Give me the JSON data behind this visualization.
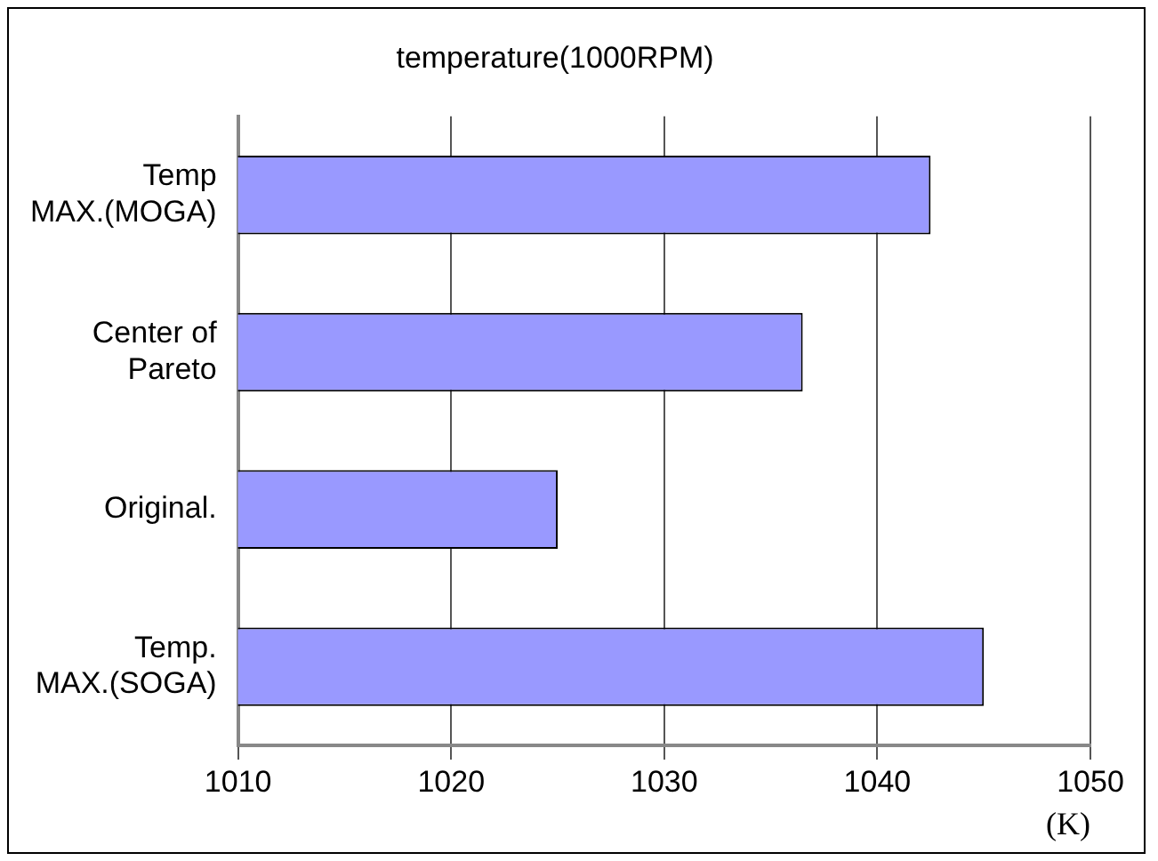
{
  "chart_data": {
    "type": "bar",
    "orientation": "horizontal",
    "title": "temperature(1000RPM)",
    "xlabel": "(K)",
    "categories": [
      "Temp\nMAX.(MOGA)",
      "Center of\nPareto",
      "Original.",
      "Temp.\nMAX.(SOGA)"
    ],
    "values": [
      1042.5,
      1036.5,
      1025,
      1045
    ],
    "color": "#9999ff",
    "xlim": [
      1010,
      1050
    ],
    "xticks": [
      1010,
      1020,
      1030,
      1040,
      1050
    ],
    "grid": "x",
    "legend": false
  }
}
